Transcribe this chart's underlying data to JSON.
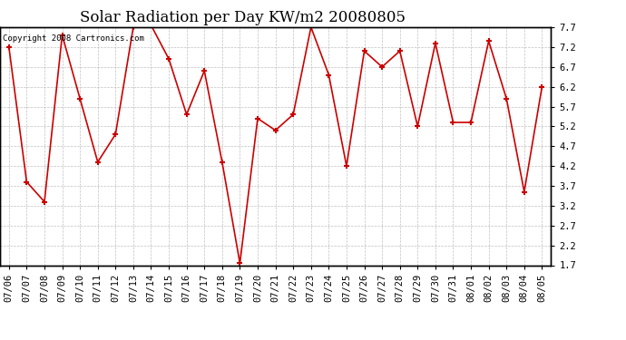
{
  "title": "Solar Radiation per Day KW/m2 20080805",
  "copyright_text": "Copyright 2008 Cartronics.com",
  "dates": [
    "07/06",
    "07/07",
    "07/08",
    "07/09",
    "07/10",
    "07/11",
    "07/12",
    "07/13",
    "07/14",
    "07/15",
    "07/16",
    "07/17",
    "07/18",
    "07/19",
    "07/20",
    "07/21",
    "07/22",
    "07/23",
    "07/24",
    "07/25",
    "07/26",
    "07/27",
    "07/28",
    "07/29",
    "07/30",
    "07/31",
    "08/01",
    "08/02",
    "08/03",
    "08/04",
    "08/05"
  ],
  "values": [
    7.2,
    3.8,
    3.3,
    7.5,
    5.9,
    4.3,
    5.0,
    7.7,
    7.75,
    6.9,
    5.5,
    6.6,
    4.3,
    1.75,
    5.4,
    5.1,
    5.5,
    7.7,
    6.5,
    4.2,
    7.1,
    6.7,
    7.1,
    5.2,
    7.3,
    5.3,
    5.3,
    7.35,
    5.9,
    3.55,
    6.2
  ],
  "line_color": "#cc0000",
  "marker": "+",
  "marker_color": "#cc0000",
  "ylim": [
    1.7,
    7.7
  ],
  "yticks": [
    1.7,
    2.2,
    2.7,
    3.2,
    3.7,
    4.2,
    4.7,
    5.2,
    5.7,
    6.2,
    6.7,
    7.2,
    7.7
  ],
  "background_color": "#ffffff",
  "plot_bg_color": "#ffffff",
  "grid_color": "#b0b0b0",
  "title_fontsize": 12,
  "tick_fontsize": 7.5,
  "copyright_fontsize": 6.5
}
